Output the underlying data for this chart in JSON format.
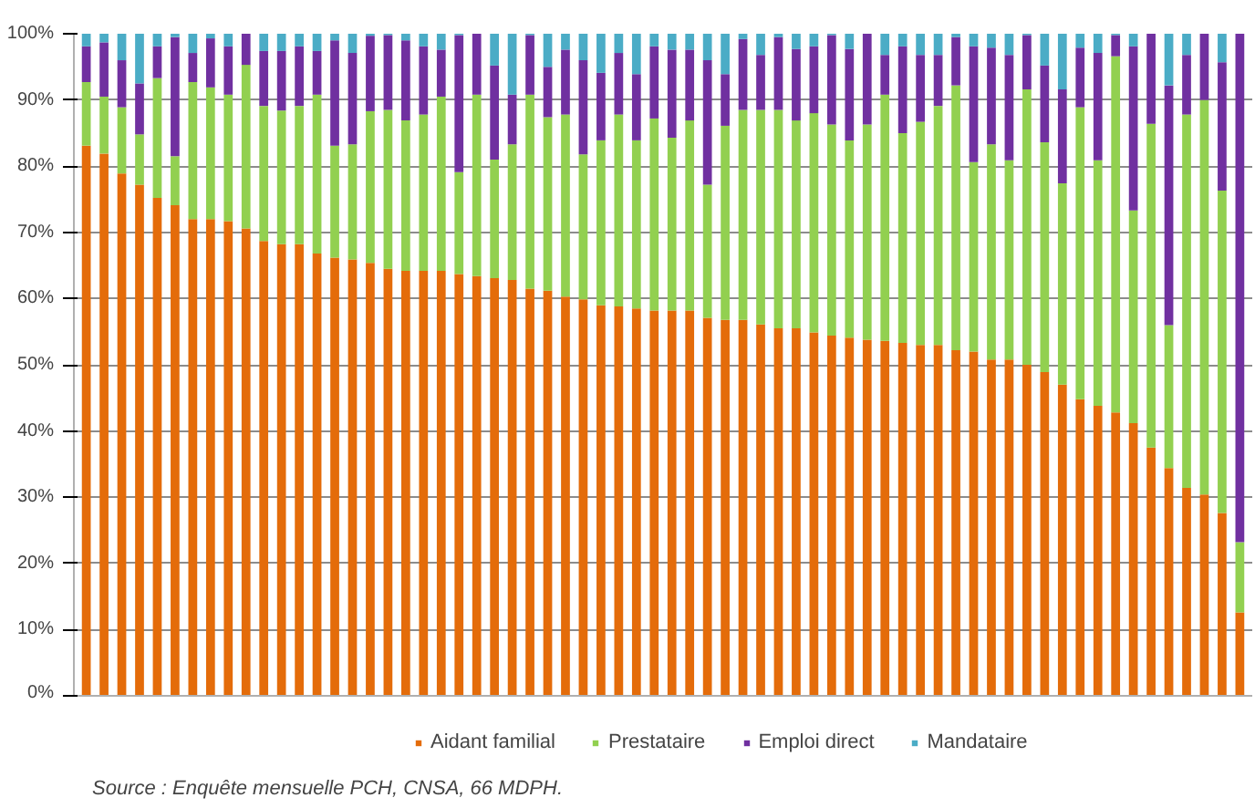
{
  "chart_data": {
    "type": "bar",
    "stacked": true,
    "categories": [
      null,
      null,
      null,
      null,
      null,
      null,
      null,
      null,
      null,
      null,
      null,
      null,
      null,
      null,
      null,
      null,
      null,
      null,
      null,
      null,
      null,
      null,
      null,
      null,
      null,
      null,
      null,
      null,
      null,
      null,
      null,
      null,
      null,
      null,
      null,
      null,
      null,
      null,
      null,
      null,
      null,
      null,
      null,
      null,
      null,
      null,
      null,
      null,
      null,
      null,
      null,
      null,
      null,
      null,
      null,
      null,
      null,
      null,
      null,
      null,
      null,
      null,
      null,
      null,
      null,
      null
    ],
    "series": [
      {
        "name": "Aidant familial",
        "color": "#e46c0a",
        "values": [
          83.1,
          81.9,
          78.9,
          77.2,
          75.2,
          74.1,
          72.0,
          72.0,
          71.7,
          70.6,
          68.7,
          68.2,
          68.2,
          66.8,
          66.2,
          65.9,
          65.4,
          64.5,
          64.2,
          64.2,
          64.2,
          63.7,
          63.4,
          63.1,
          62.8,
          61.5,
          61.2,
          60.3,
          59.9,
          59.0,
          58.8,
          58.5,
          58.2,
          58.2,
          58.2,
          57.1,
          56.8,
          56.8,
          56.1,
          55.5,
          55.5,
          54.9,
          54.4,
          54.1,
          53.8,
          53.6,
          53.3,
          53.0,
          53.0,
          52.2,
          52.0,
          50.8,
          50.8,
          50.0,
          48.9,
          47.0,
          44.8,
          43.8,
          42.8,
          41.2,
          37.5,
          34.4,
          31.4,
          30.4,
          27.6,
          12.6
        ]
      },
      {
        "name": "Prestataire",
        "color": "#92d050",
        "values": [
          9.6,
          8.6,
          10.0,
          7.6,
          18.1,
          7.4,
          20.7,
          19.9,
          19.1,
          24.7,
          20.4,
          20.2,
          20.9,
          24.0,
          16.9,
          17.4,
          22.9,
          24.0,
          22.7,
          23.6,
          26.3,
          15.4,
          27.4,
          17.9,
          20.5,
          29.3,
          26.2,
          27.5,
          21.9,
          24.9,
          29.0,
          25.4,
          29.0,
          26.1,
          28.7,
          20.1,
          29.3,
          31.7,
          32.4,
          33.0,
          31.4,
          33.1,
          31.9,
          29.8,
          32.5,
          37.2,
          31.7,
          33.7,
          36.1,
          40.0,
          28.6,
          32.5,
          30.1,
          41.6,
          34.7,
          30.4,
          44.1,
          37.1,
          53.8,
          32.1,
          48.9,
          21.6,
          56.4,
          59.6,
          48.7,
          10.6
        ]
      },
      {
        "name": "Emploi direct",
        "color": "#7030a0",
        "values": [
          5.4,
          8.2,
          7.1,
          7.7,
          4.8,
          18.0,
          4.4,
          7.4,
          7.3,
          4.7,
          8.3,
          9.0,
          9.0,
          6.6,
          15.9,
          13.8,
          11.4,
          11.3,
          12.1,
          10.3,
          7.1,
          20.7,
          9.2,
          14.2,
          7.5,
          9.0,
          7.6,
          9.8,
          14.2,
          10.2,
          9.3,
          10.0,
          10.9,
          13.3,
          10.7,
          18.8,
          7.8,
          10.7,
          8.3,
          11.0,
          10.8,
          10.1,
          13.5,
          13.8,
          13.7,
          6.0,
          13.1,
          10.1,
          7.7,
          7.3,
          17.5,
          14.6,
          15.9,
          8.2,
          11.6,
          14.2,
          9.0,
          16.2,
          3.2,
          24.8,
          13.6,
          36.2,
          9.0,
          10.0,
          19.4,
          76.8
        ]
      },
      {
        "name": "Mandataire",
        "color": "#4bacc6",
        "values": [
          1.9,
          1.3,
          4.0,
          7.5,
          1.9,
          0.5,
          2.9,
          0.7,
          1.9,
          0,
          2.6,
          2.6,
          1.9,
          2.6,
          1.0,
          2.9,
          0.3,
          0.2,
          1.0,
          1.9,
          2.4,
          0.2,
          0,
          4.8,
          9.2,
          0.2,
          5.0,
          2.4,
          4.0,
          5.9,
          2.9,
          6.1,
          1.9,
          2.4,
          2.4,
          4.0,
          6.1,
          0.8,
          3.2,
          0.5,
          2.3,
          1.9,
          0.2,
          2.3,
          0,
          3.2,
          1.9,
          3.2,
          3.2,
          0.5,
          1.9,
          2.1,
          3.2,
          0.2,
          4.8,
          8.4,
          2.1,
          2.9,
          0.2,
          1.9,
          0,
          7.8,
          3.2,
          0,
          4.3,
          0
        ]
      }
    ],
    "ylim": [
      0,
      100
    ],
    "yticks": [
      {
        "value": 0,
        "label": "0%"
      },
      {
        "value": 10,
        "label": "10%"
      },
      {
        "value": 20,
        "label": "20%"
      },
      {
        "value": 30,
        "label": "30%"
      },
      {
        "value": 40,
        "label": "40%"
      },
      {
        "value": 50,
        "label": "50%"
      },
      {
        "value": 60,
        "label": "60%"
      },
      {
        "value": 70,
        "label": "70%"
      },
      {
        "value": 80,
        "label": "80%"
      },
      {
        "value": 90,
        "label": "90%"
      },
      {
        "value": 100,
        "label": "100%"
      }
    ],
    "grid": "y",
    "legend": "bottom",
    "annotations": [
      "Source : Enquête mensuelle PCH, CNSA, 66 MDPH."
    ]
  }
}
